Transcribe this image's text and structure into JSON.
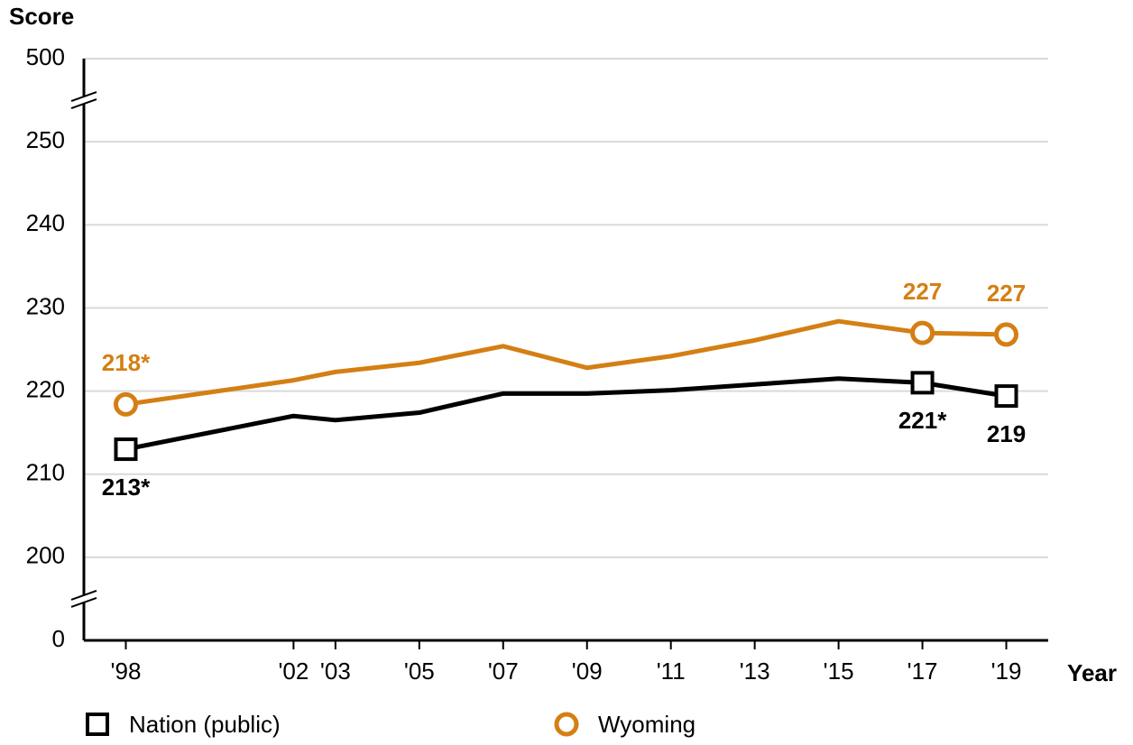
{
  "chart_data": {
    "type": "line",
    "ylabel": "Score",
    "xlabel": "Year",
    "x": [
      1998,
      2002,
      2003,
      2005,
      2007,
      2009,
      2011,
      2013,
      2015,
      2017,
      2019
    ],
    "xlim": [
      1997,
      2020
    ],
    "xticks": [
      {
        "value": 1998,
        "label": "'98"
      },
      {
        "value": 2002,
        "label": "'02"
      },
      {
        "value": 2003,
        "label": "'03"
      },
      {
        "value": 2005,
        "label": "'05"
      },
      {
        "value": 2007,
        "label": "'07"
      },
      {
        "value": 2009,
        "label": "'09"
      },
      {
        "value": 2011,
        "label": "'11"
      },
      {
        "value": 2013,
        "label": "'13"
      },
      {
        "value": 2015,
        "label": "'15"
      },
      {
        "value": 2017,
        "label": "'17"
      },
      {
        "value": 2019,
        "label": "'19"
      }
    ],
    "ylim": [
      0,
      500
    ],
    "yticks": [
      0,
      200,
      210,
      220,
      230,
      240,
      250,
      500
    ],
    "grid": true,
    "series": [
      {
        "name": "Nation (public)",
        "color": "#000000",
        "marker": "square",
        "values": [
          213.0,
          217.0,
          216.5,
          217.4,
          219.7,
          219.7,
          220.1,
          220.8,
          221.5,
          221.0,
          219.4
        ],
        "value_labels": [
          "213*",
          null,
          null,
          null,
          null,
          null,
          null,
          null,
          null,
          "221*",
          "219"
        ]
      },
      {
        "name": "Wyoming",
        "color": "#d47f14",
        "marker": "circle",
        "values": [
          218.4,
          221.3,
          222.3,
          223.4,
          225.4,
          222.8,
          224.2,
          226.1,
          228.4,
          227.0,
          226.8
        ],
        "value_labels": [
          "218*",
          null,
          null,
          null,
          null,
          null,
          null,
          null,
          null,
          "227",
          "227"
        ]
      }
    ]
  }
}
